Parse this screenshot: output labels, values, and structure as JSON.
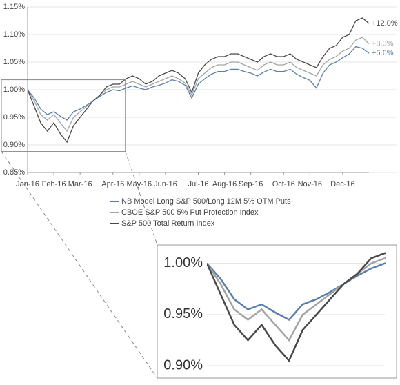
{
  "chart_data": {
    "type": "line",
    "categories": [
      "Jan-16",
      null,
      null,
      null,
      "Feb-16",
      null,
      null,
      null,
      "Mar-16",
      null,
      null,
      null,
      null,
      "Apr-16",
      null,
      null,
      null,
      "May-16",
      null,
      null,
      null,
      "Jun-16",
      null,
      null,
      null,
      null,
      "Jul-16",
      null,
      null,
      null,
      "Aug-16",
      null,
      null,
      null,
      "Sep-16",
      null,
      null,
      null,
      null,
      "Oct-16",
      null,
      null,
      null,
      "Nov-16",
      null,
      null,
      null,
      null,
      "Dec-16",
      null,
      null,
      null,
      null
    ],
    "series": [
      {
        "name": "NB Model Long S&P 500/Long 12M 5% OTM Puts",
        "color": "#5b7fa8",
        "values": [
          1.0,
          0.985,
          0.965,
          0.955,
          0.96,
          0.952,
          0.945,
          0.96,
          0.965,
          0.972,
          0.98,
          0.988,
          0.995,
          1.0,
          0.998,
          1.003,
          1.007,
          1.003,
          1.0,
          1.005,
          1.008,
          1.012,
          1.018,
          1.015,
          1.008,
          0.985,
          1.01,
          1.02,
          1.028,
          1.033,
          1.033,
          1.037,
          1.037,
          1.033,
          1.03,
          1.025,
          1.032,
          1.037,
          1.033,
          1.033,
          1.037,
          1.028,
          1.022,
          1.017,
          1.003,
          1.03,
          1.045,
          1.05,
          1.058,
          1.065,
          1.078,
          1.075,
          1.066
        ]
      },
      {
        "name": "CBOE S&P 500 5% Put Protection Index",
        "color": "#a3a3a3",
        "values": [
          1.0,
          0.98,
          0.955,
          0.945,
          0.955,
          0.94,
          0.925,
          0.95,
          0.96,
          0.97,
          0.98,
          0.99,
          1.0,
          1.005,
          1.005,
          1.01,
          1.015,
          1.01,
          1.005,
          1.01,
          1.015,
          1.02,
          1.025,
          1.02,
          1.012,
          0.99,
          1.02,
          1.03,
          1.04,
          1.045,
          1.045,
          1.05,
          1.05,
          1.045,
          1.04,
          1.035,
          1.045,
          1.05,
          1.045,
          1.045,
          1.05,
          1.04,
          1.035,
          1.03,
          1.025,
          1.045,
          1.055,
          1.06,
          1.07,
          1.075,
          1.09,
          1.095,
          1.083
        ]
      },
      {
        "name": "S&P 500 Total Return Index",
        "color": "#484848",
        "values": [
          1.0,
          0.97,
          0.94,
          0.925,
          0.94,
          0.92,
          0.905,
          0.935,
          0.95,
          0.965,
          0.98,
          0.99,
          1.005,
          1.01,
          1.01,
          1.02,
          1.025,
          1.02,
          1.01,
          1.015,
          1.025,
          1.03,
          1.035,
          1.03,
          1.02,
          0.995,
          1.03,
          1.045,
          1.055,
          1.06,
          1.06,
          1.065,
          1.065,
          1.06,
          1.055,
          1.05,
          1.06,
          1.065,
          1.06,
          1.06,
          1.065,
          1.055,
          1.05,
          1.045,
          1.04,
          1.06,
          1.075,
          1.08,
          1.095,
          1.1,
          1.125,
          1.13,
          1.12
        ]
      }
    ],
    "annotations": [
      "+6.6%",
      "+8.3%",
      "+12.0%"
    ],
    "ylim": [
      0.85,
      1.15
    ],
    "yticks": [
      {
        "value": 0.85,
        "label": "0.85%"
      },
      {
        "value": 0.9,
        "label": "0.90%"
      },
      {
        "value": 0.95,
        "label": "0.95%"
      },
      {
        "value": 1.0,
        "label": "1.00%"
      },
      {
        "value": 1.05,
        "label": "1.05%"
      },
      {
        "value": 1.1,
        "label": "1.10%"
      },
      {
        "value": 1.15,
        "label": "1.15%"
      }
    ],
    "grid": true,
    "inset": {
      "xlim": [
        0,
        13
      ],
      "ylim": [
        0.888,
        1.018
      ],
      "yticks": [
        {
          "value": 0.9,
          "label": "0.90%"
        },
        {
          "value": 0.95,
          "label": "0.95%"
        },
        {
          "value": 1.0,
          "label": "1.00%"
        }
      ]
    }
  }
}
